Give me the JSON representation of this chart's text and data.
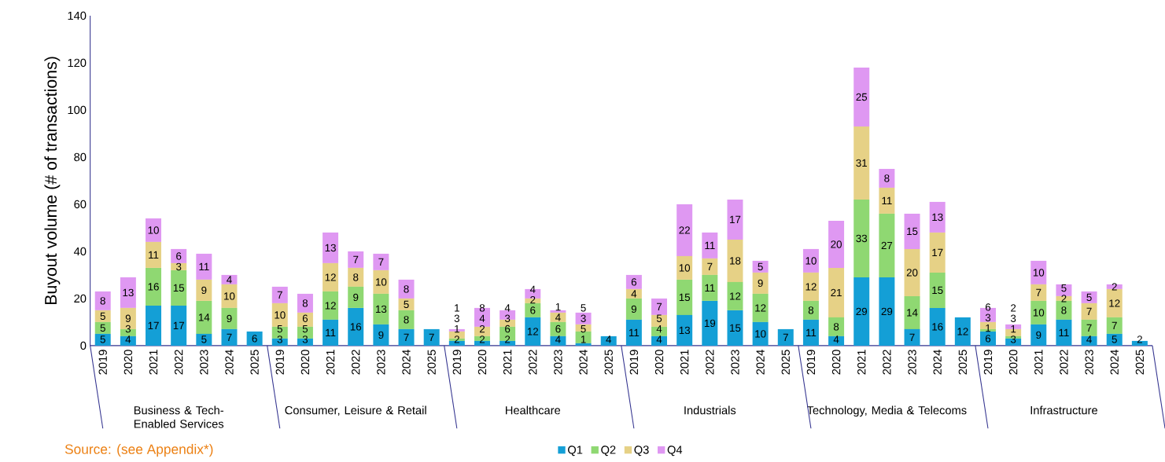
{
  "chart_data": {
    "type": "bar",
    "stacked": true,
    "ylabel": "Buyout volume (# of transactions)",
    "categories": [
      "2019",
      "2020",
      "2021",
      "2022",
      "2023",
      "2024",
      "2025",
      "2019",
      "2020",
      "2021",
      "2022",
      "2023",
      "2024",
      "2025",
      "2019",
      "2020",
      "2021",
      "2022",
      "2023",
      "2024",
      "2025",
      "2019",
      "2020",
      "2021",
      "2022",
      "2023",
      "2024",
      "2025",
      "2019",
      "2020",
      "2021",
      "2022",
      "2023",
      "2024",
      "2025",
      "2019",
      "2020",
      "2021",
      "2022",
      "2023",
      "2024",
      "2025"
    ],
    "series": [
      {
        "name": "Q1",
        "color": "#149fd6",
        "values": [
          5,
          4,
          17,
          17,
          5,
          7,
          6,
          3,
          3,
          11,
          16,
          9,
          7,
          7,
          2,
          2,
          2,
          12,
          4,
          1,
          4,
          11,
          4,
          13,
          19,
          15,
          10,
          7,
          11,
          4,
          29,
          29,
          7,
          16,
          12,
          6,
          3,
          9,
          11,
          4,
          5,
          2
        ]
      },
      {
        "name": "Q2",
        "color": "#8fd872",
        "values": [
          5,
          3,
          16,
          15,
          14,
          9,
          null,
          5,
          5,
          12,
          9,
          13,
          8,
          null,
          1,
          2,
          6,
          6,
          6,
          5,
          null,
          9,
          4,
          15,
          11,
          12,
          12,
          null,
          8,
          8,
          33,
          27,
          14,
          15,
          null,
          1,
          1,
          10,
          8,
          7,
          7,
          null
        ]
      },
      {
        "name": "Q3",
        "color": "#e6d186",
        "values": [
          5,
          9,
          11,
          3,
          9,
          10,
          null,
          10,
          6,
          12,
          8,
          10,
          5,
          null,
          3,
          4,
          3,
          2,
          4,
          3,
          null,
          4,
          5,
          10,
          7,
          18,
          9,
          null,
          12,
          21,
          31,
          11,
          20,
          17,
          null,
          3,
          3,
          7,
          2,
          7,
          12,
          null
        ]
      },
      {
        "name": "Q4",
        "color": "#df98f2",
        "values": [
          8,
          13,
          10,
          6,
          11,
          4,
          null,
          7,
          8,
          13,
          7,
          7,
          8,
          null,
          1,
          8,
          4,
          4,
          1,
          5,
          null,
          6,
          7,
          22,
          11,
          17,
          5,
          null,
          10,
          20,
          25,
          8,
          15,
          13,
          null,
          6,
          2,
          10,
          5,
          5,
          2,
          null
        ]
      }
    ],
    "ylim": [
      0,
      140
    ],
    "yticks": [
      0,
      20,
      40,
      60,
      80,
      100,
      120,
      140
    ],
    "data_labels": true,
    "legend": "bottom",
    "grid": false,
    "annotations": [
      "Business & Tech-Enabled Services",
      "Consumer, Leisure & Retail",
      "Healthcare",
      "Industrials",
      "Technology, Media & Telecoms",
      "Infrastructure",
      "Source: (see Appendix*)"
    ]
  }
}
